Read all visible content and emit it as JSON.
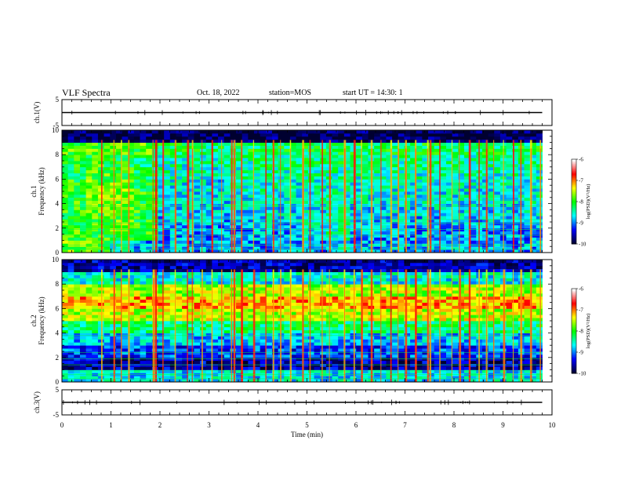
{
  "header": {
    "title": "VLF Spectra",
    "date": "Oct. 18, 2022",
    "station": "station=MOS",
    "start": "start UT =  14:30: 1"
  },
  "chart_data": [
    {
      "type": "line",
      "panel": "ch.1 waveform",
      "ylabel": "ch.1(V)",
      "ylim": [
        -5,
        5
      ],
      "yticks": [
        "5",
        "-5"
      ],
      "xlim": [
        0,
        10
      ],
      "series": [
        {
          "values": [
            0,
            0,
            0,
            0,
            0,
            0,
            0,
            0,
            0,
            0
          ]
        }
      ],
      "color": "#000000"
    },
    {
      "type": "heatmap",
      "panel": "ch.1 spectrogram",
      "ylabel": "ch.1\nFrequency (kHz)",
      "ylim": [
        0,
        10
      ],
      "yticks": [
        "0",
        "2",
        "4",
        "6",
        "8",
        "10"
      ],
      "xlim": [
        0,
        9.8
      ],
      "colorbar": {
        "label": "log(PSD)(V²/Hz)",
        "ticks": [
          "-6",
          "-7",
          "-8",
          "-9",
          "-10"
        ],
        "range": [
          -10,
          -6
        ],
        "colors": [
          "#000030",
          "#0000ff",
          "#00ffff",
          "#00ff00",
          "#ffff00",
          "#ff0000",
          "#ffffff"
        ]
      },
      "x_min": [
        0,
        0.5,
        1,
        1.5,
        2,
        2.5,
        3,
        3.5,
        4,
        4.5,
        5,
        5.5,
        6,
        6.5,
        7,
        7.5,
        8,
        8.5,
        9,
        9.5
      ],
      "y_kHz": [
        0.5,
        1.5,
        2.5,
        3.5,
        4.5,
        5.5,
        6.5,
        7.5,
        8.5,
        9.5
      ],
      "z_log_psd": [
        [
          -7.8,
          -7.9,
          -8.6,
          -8.9,
          -8.9,
          -8.9,
          -8.9,
          -8.9,
          -8.9,
          -8.9,
          -8.9,
          -8.7,
          -8.9,
          -8.9,
          -8.9,
          -8.9,
          -8.9,
          -8.9,
          -8.9,
          -8.9
        ],
        [
          -7.9,
          -8.0,
          -7.9,
          -8.0,
          -8.9,
          -8.9,
          -9.0,
          -9.0,
          -8.9,
          -9.0,
          -8.7,
          -8.4,
          -8.9,
          -9.0,
          -9.0,
          -8.9,
          -9.0,
          -9.0,
          -9.0,
          -9.0
        ],
        [
          -8.0,
          -7.9,
          -7.8,
          -8.0,
          -8.8,
          -8.8,
          -8.9,
          -8.8,
          -8.7,
          -8.8,
          -8.6,
          -8.5,
          -8.8,
          -8.8,
          -8.8,
          -8.8,
          -8.8,
          -8.8,
          -8.8,
          -8.8
        ],
        [
          -8.0,
          -7.9,
          -7.7,
          -8.0,
          -8.7,
          -8.7,
          -8.8,
          -8.7,
          -8.6,
          -8.7,
          -8.6,
          -8.5,
          -8.7,
          -8.7,
          -8.7,
          -8.7,
          -8.7,
          -8.7,
          -8.7,
          -8.7
        ],
        [
          -8.0,
          -7.8,
          -7.7,
          -8.0,
          -8.6,
          -8.7,
          -8.7,
          -8.6,
          -8.5,
          -8.6,
          -8.5,
          -8.5,
          -8.6,
          -8.6,
          -8.6,
          -8.6,
          -8.6,
          -8.6,
          -8.6,
          -8.6
        ],
        [
          -8.0,
          -7.8,
          -7.8,
          -8.1,
          -8.6,
          -8.6,
          -8.7,
          -8.6,
          -8.5,
          -8.6,
          -8.5,
          -8.5,
          -8.6,
          -8.6,
          -8.6,
          -8.6,
          -8.6,
          -8.6,
          -8.6,
          -8.6
        ],
        [
          -8.1,
          -7.9,
          -7.9,
          -8.2,
          -8.5,
          -8.5,
          -8.6,
          -8.5,
          -8.4,
          -8.5,
          -8.4,
          -8.4,
          -8.5,
          -8.5,
          -8.5,
          -8.5,
          -8.5,
          -8.5,
          -8.5,
          -8.5
        ],
        [
          -8.1,
          -8.0,
          -8.1,
          -8.3,
          -8.5,
          -8.5,
          -8.5,
          -8.4,
          -8.3,
          -8.4,
          -8.3,
          -8.3,
          -8.4,
          -8.4,
          -8.4,
          -8.4,
          -8.4,
          -8.4,
          -8.4,
          -8.4
        ],
        [
          -7.9,
          -7.9,
          -7.9,
          -7.9,
          -8.2,
          -8.2,
          -8.3,
          -8.2,
          -8.2,
          -8.2,
          -8.2,
          -8.2,
          -8.2,
          -8.2,
          -8.2,
          -8.2,
          -8.2,
          -8.2,
          -8.2,
          -8.2
        ],
        [
          -9.9,
          -9.9,
          -9.9,
          -9.9,
          -9.9,
          -9.9,
          -9.9,
          -9.9,
          -9.9,
          -9.9,
          -9.9,
          -9.9,
          -9.9,
          -9.9,
          -9.9,
          -9.9,
          -9.9,
          -9.9,
          -9.9,
          -9.9
        ]
      ],
      "impulses_min": [
        0.8,
        1.05,
        1.2,
        1.35,
        1.85,
        1.9,
        2.05,
        2.3,
        2.55,
        2.65,
        2.85,
        3.05,
        3.25,
        3.45,
        3.5,
        3.65,
        3.9,
        4.15,
        4.3,
        4.45,
        4.65,
        4.9,
        5.05,
        5.3,
        5.45,
        5.75,
        5.95,
        6.1,
        6.3,
        6.5,
        6.7,
        6.85,
        7.0,
        7.2,
        7.45,
        7.5,
        7.7,
        7.95,
        8.1,
        8.3,
        8.5,
        8.65,
        8.8,
        9.0,
        9.2,
        9.35,
        9.55,
        9.75
      ],
      "tones_kHz": [
        0.3,
        0.6,
        1.4,
        1.9,
        2.4,
        2.7,
        3.8,
        4.3
      ]
    },
    {
      "type": "heatmap",
      "panel": "ch.2 spectrogram",
      "ylabel": "ch.2\nFrequency (kHz)",
      "ylim": [
        0,
        10
      ],
      "yticks": [
        "0",
        "2",
        "4",
        "6",
        "8",
        "10"
      ],
      "xlim": [
        0,
        9.8
      ],
      "colorbar": {
        "label": "log(PSD)(V²/Hz)",
        "ticks": [
          "-6",
          "-7",
          "-8",
          "-9",
          "-10"
        ],
        "range": [
          -10,
          -6
        ],
        "colors": [
          "#000030",
          "#0000ff",
          "#00ffff",
          "#00ff00",
          "#ffff00",
          "#ff0000",
          "#ffffff"
        ]
      },
      "x_min": [
        0,
        0.5,
        1,
        1.5,
        2,
        2.5,
        3,
        3.5,
        4,
        4.5,
        5,
        5.5,
        6,
        6.5,
        7,
        7.5,
        8,
        8.5,
        9,
        9.5
      ],
      "y_kHz": [
        0.5,
        1.5,
        2.5,
        3.5,
        4.5,
        5.5,
        6.5,
        7.5,
        8.5,
        9.5
      ],
      "z_log_psd": [
        [
          -8.7,
          -8.7,
          -8.7,
          -8.7,
          -8.7,
          -8.7,
          -8.7,
          -8.7,
          -8.7,
          -8.7,
          -8.7,
          -8.7,
          -8.7,
          -8.7,
          -8.7,
          -8.7,
          -8.7,
          -8.7,
          -8.7,
          -8.7
        ],
        [
          -9.6,
          -9.6,
          -9.6,
          -9.6,
          -9.6,
          -9.6,
          -9.6,
          -9.6,
          -9.6,
          -9.6,
          -9.6,
          -9.6,
          -9.6,
          -9.6,
          -9.6,
          -9.6,
          -9.6,
          -9.6,
          -9.6,
          -9.6
        ],
        [
          -9.2,
          -9.2,
          -9.2,
          -9.2,
          -9.2,
          -9.2,
          -9.2,
          -9.2,
          -9.2,
          -9.2,
          -9.2,
          -9.2,
          -9.2,
          -9.2,
          -9.2,
          -9.2,
          -9.2,
          -9.2,
          -9.2,
          -9.2
        ],
        [
          -8.8,
          -8.8,
          -8.8,
          -8.8,
          -8.8,
          -8.8,
          -8.8,
          -8.8,
          -8.8,
          -8.8,
          -8.8,
          -8.8,
          -8.8,
          -8.8,
          -8.8,
          -8.8,
          -8.8,
          -8.8,
          -8.8,
          -8.8
        ],
        [
          -8.3,
          -8.3,
          -8.3,
          -8.3,
          -8.3,
          -8.3,
          -8.3,
          -8.3,
          -8.3,
          -8.3,
          -8.3,
          -8.3,
          -8.3,
          -8.3,
          -8.3,
          -8.3,
          -8.3,
          -8.3,
          -8.3,
          -8.3
        ],
        [
          -7.5,
          -7.5,
          -7.5,
          -7.5,
          -7.5,
          -7.5,
          -7.5,
          -7.5,
          -7.5,
          -7.5,
          -7.5,
          -7.5,
          -7.5,
          -7.5,
          -7.5,
          -7.5,
          -7.5,
          -7.5,
          -7.5,
          -7.5
        ],
        [
          -7.1,
          -7.1,
          -7.1,
          -7.1,
          -7.1,
          -7.1,
          -7.1,
          -7.1,
          -7.1,
          -7.1,
          -7.1,
          -7.1,
          -7.1,
          -7.1,
          -7.1,
          -7.1,
          -7.1,
          -7.1,
          -7.1,
          -7.1
        ],
        [
          -7.6,
          -7.6,
          -7.6,
          -7.6,
          -7.6,
          -7.6,
          -7.6,
          -7.6,
          -7.6,
          -7.6,
          -7.6,
          -7.6,
          -7.6,
          -7.6,
          -7.6,
          -7.6,
          -7.6,
          -7.6,
          -7.6,
          -7.6
        ],
        [
          -8.6,
          -8.6,
          -8.6,
          -8.6,
          -8.6,
          -8.6,
          -8.6,
          -8.6,
          -8.6,
          -8.6,
          -8.6,
          -8.6,
          -8.6,
          -8.6,
          -8.6,
          -8.6,
          -8.6,
          -8.6,
          -8.6,
          -8.6
        ],
        [
          -9.6,
          -9.6,
          -9.6,
          -9.6,
          -9.6,
          -9.6,
          -9.6,
          -9.6,
          -9.6,
          -9.6,
          -9.6,
          -9.6,
          -9.6,
          -9.6,
          -9.6,
          -9.6,
          -9.6,
          -9.6,
          -9.6,
          -9.6
        ]
      ],
      "impulses_min": [
        0.8,
        1.05,
        1.2,
        1.35,
        1.85,
        1.9,
        2.05,
        2.3,
        2.55,
        2.65,
        2.85,
        3.05,
        3.25,
        3.45,
        3.5,
        3.65,
        3.9,
        4.15,
        4.3,
        4.45,
        4.65,
        4.9,
        5.05,
        5.3,
        5.45,
        5.75,
        5.95,
        6.1,
        6.3,
        6.5,
        6.7,
        6.85,
        7.0,
        7.2,
        7.45,
        7.5,
        7.7,
        7.95,
        8.1,
        8.3,
        8.5,
        8.65,
        8.8,
        9.0,
        9.2,
        9.35,
        9.55,
        9.75
      ],
      "tones_kHz": [
        0.3,
        0.6,
        0.9,
        1.4,
        1.9,
        2.4,
        3.8
      ]
    },
    {
      "type": "line",
      "panel": "ch.3 waveform",
      "ylabel": "ch.3(V)",
      "ylim": [
        -5,
        5
      ],
      "yticks": [
        "5",
        "-5"
      ],
      "xlim": [
        0,
        10
      ],
      "series": [
        {
          "values": [
            0,
            0,
            0,
            0,
            0,
            0,
            0,
            0,
            0,
            0
          ]
        }
      ],
      "color": "#000000"
    }
  ],
  "xaxis": {
    "label": "Time (min)",
    "ticks": [
      "0",
      "1",
      "2",
      "3",
      "4",
      "5",
      "6",
      "7",
      "8",
      "9",
      "10"
    ],
    "range": [
      0,
      10
    ]
  }
}
